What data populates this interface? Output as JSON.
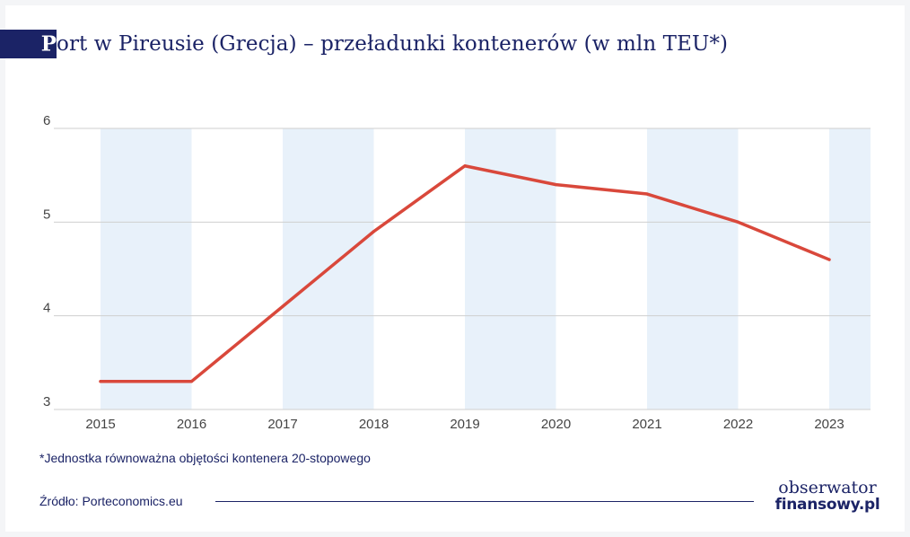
{
  "title": {
    "initial": "P",
    "rest": "ort w Pireusie (Grecja) – przeładunki kontenerów (w mln TEU*)"
  },
  "footnote": "*Jednostka równoważna objętości kontenera 20-stopowego",
  "source": "Źródło: Porteconomics.eu",
  "logo": {
    "top": "obserwator",
    "bottom": "finansowy.pl"
  },
  "colors": {
    "line": "#d9483b",
    "band": "#e8f1fa",
    "grid": "#cfcfcf",
    "navy": "#1b2366"
  },
  "chart_data": {
    "type": "line",
    "title": "Port w Pireusie (Grecja) – przeładunki kontenerów (w mln TEU*)",
    "xlabel": "",
    "ylabel": "",
    "categories": [
      "2015",
      "2016",
      "2017",
      "2018",
      "2019",
      "2020",
      "2021",
      "2022",
      "2023"
    ],
    "series": [
      {
        "values": [
          3.3,
          3.3,
          4.1,
          4.9,
          5.6,
          5.4,
          5.3,
          5.0,
          4.6
        ]
      }
    ],
    "ylim": [
      3,
      6
    ],
    "yticks": [
      3,
      4,
      5,
      6
    ],
    "grid": true,
    "alternating_bands": true
  }
}
